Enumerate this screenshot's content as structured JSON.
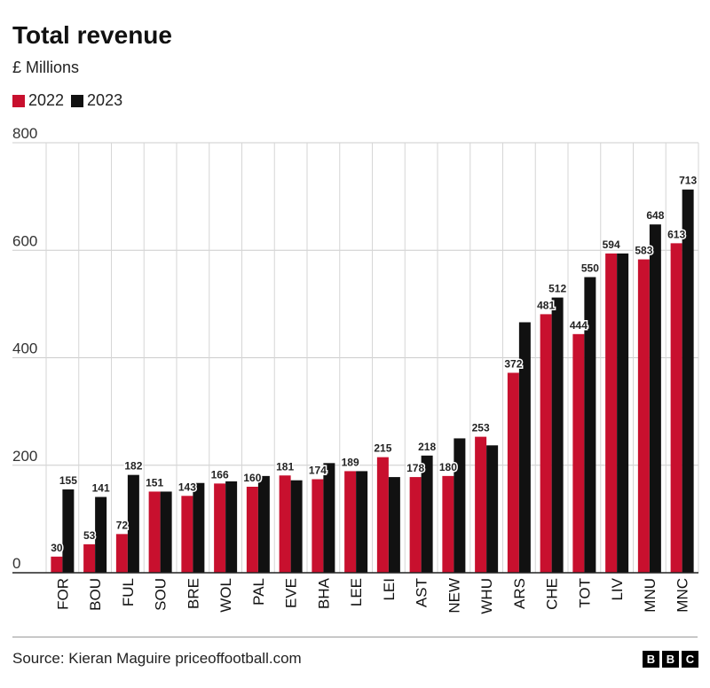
{
  "title": "Total revenue",
  "subtitle": "£ Millions",
  "legend": [
    {
      "label": "2022",
      "color": "#c8102e"
    },
    {
      "label": "2023",
      "color": "#111111"
    }
  ],
  "source": "Source: Kieran Maguire priceoffootball.com",
  "brand": [
    "B",
    "B",
    "C"
  ],
  "chart_data": {
    "type": "bar",
    "categories": [
      "FOR",
      "BOU",
      "FUL",
      "SOU",
      "BRE",
      "WOL",
      "PAL",
      "EVE",
      "BHA",
      "LEE",
      "LEI",
      "AST",
      "NEW",
      "WHU",
      "ARS",
      "CHE",
      "TOT",
      "LIV",
      "MNU",
      "MNC"
    ],
    "series": [
      {
        "name": "2022",
        "color": "#c8102e",
        "values": [
          30,
          53,
          72,
          151,
          143,
          166,
          160,
          181,
          174,
          189,
          215,
          178,
          180,
          253,
          372,
          481,
          444,
          594,
          583,
          613
        ],
        "labels": [
          "30",
          "53",
          "72",
          "151",
          "143",
          "166",
          "160",
          "181",
          "174",
          "189",
          "215",
          "178",
          "180",
          "253",
          "372",
          "481",
          "444",
          "594",
          "583",
          "613"
        ]
      },
      {
        "name": "2023",
        "color": "#111111",
        "values": [
          155,
          141,
          182,
          151,
          167,
          170,
          180,
          172,
          204,
          189,
          178,
          218,
          250,
          237,
          466,
          512,
          550,
          594,
          648,
          713
        ],
        "labels": [
          "155",
          "141",
          "182",
          "",
          "",
          "",
          "",
          "",
          "",
          "",
          "",
          "218",
          "",
          "",
          "",
          "512",
          "550",
          "",
          "648",
          "713"
        ]
      }
    ],
    "yticks": [
      0,
      200,
      400,
      600,
      800
    ],
    "ylim": [
      0,
      800
    ],
    "grid": true
  }
}
